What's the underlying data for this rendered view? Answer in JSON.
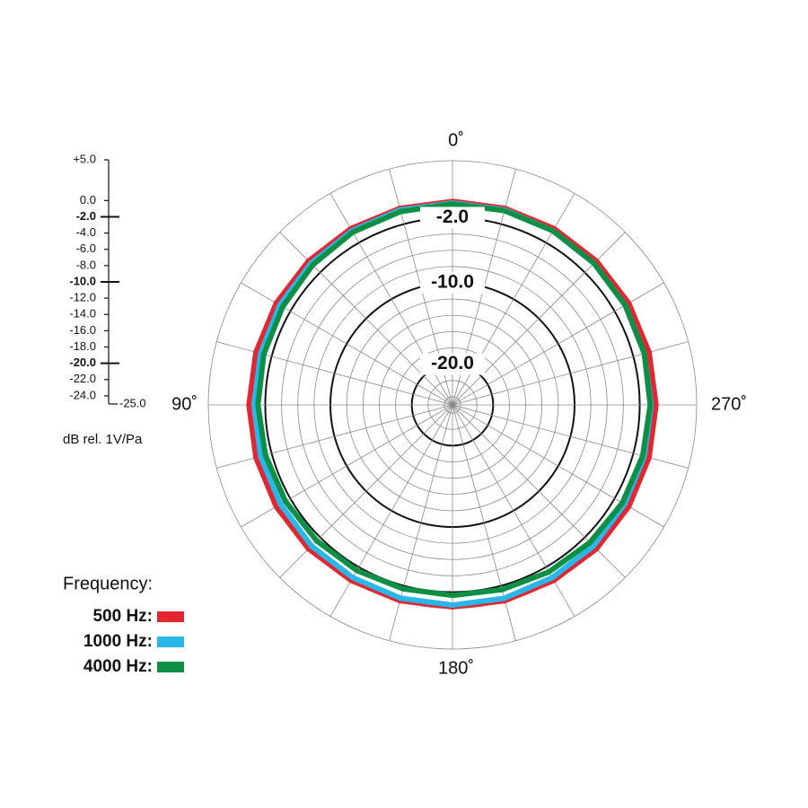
{
  "chart_data": {
    "type": "polar",
    "theta": [
      0,
      15,
      30,
      45,
      60,
      75,
      90,
      105,
      120,
      135,
      150,
      165,
      180,
      195,
      210,
      225,
      240,
      255,
      270,
      285,
      300,
      315,
      330,
      345
    ],
    "series": [
      {
        "name": "500 Hz:",
        "color": "#e3262f",
        "values": [
          0,
          0,
          0,
          0,
          0,
          0,
          0,
          0,
          0,
          0,
          -0.1,
          -0.1,
          -0.2,
          -0.1,
          -0.1,
          0,
          0,
          0,
          0,
          0,
          0,
          0,
          0,
          0
        ]
      },
      {
        "name": "1000 Hz:",
        "color": "#29b6e8",
        "values": [
          -0.2,
          -0.2,
          -0.3,
          -0.4,
          -0.5,
          -0.6,
          -0.6,
          -0.6,
          -0.6,
          -0.5,
          -0.5,
          -0.4,
          -0.4,
          -0.4,
          -0.5,
          -0.5,
          -0.6,
          -0.6,
          -0.6,
          -0.6,
          -0.5,
          -0.4,
          -0.3,
          -0.2
        ]
      },
      {
        "name": "4000 Hz:",
        "color": "#0d8f45",
        "values": [
          -0.3,
          -0.4,
          -0.5,
          -0.7,
          -0.9,
          -1.0,
          -1.1,
          -1.2,
          -1.3,
          -1.4,
          -1.5,
          -1.6,
          -1.6,
          -1.5,
          -1.3,
          -1.1,
          -0.9,
          -0.8,
          -0.7,
          -0.6,
          -0.5,
          -0.4,
          -0.3,
          -0.3
        ]
      }
    ],
    "rlim": [
      -25,
      5
    ],
    "rticks": [
      {
        "value": 5,
        "label": "+5.0"
      },
      {
        "value": 0,
        "label": "0.0"
      },
      {
        "value": -2,
        "label": "-2.0"
      },
      {
        "value": -4,
        "label": "-4.0"
      },
      {
        "value": -6,
        "label": "-6.0"
      },
      {
        "value": -8,
        "label": "-8.0"
      },
      {
        "value": -10,
        "label": "-10.0"
      },
      {
        "value": -12,
        "label": "-12.0"
      },
      {
        "value": -14,
        "label": "-14.0"
      },
      {
        "value": -16,
        "label": "-16.0"
      },
      {
        "value": -18,
        "label": "-18.0"
      },
      {
        "value": -20,
        "label": "-20.0"
      },
      {
        "value": -22,
        "label": "-22.0"
      },
      {
        "value": -24,
        "label": "-24.0"
      },
      {
        "value": -25,
        "label": "-25.0"
      }
    ],
    "ring_labels": [
      {
        "value": -2,
        "label": "-2.0"
      },
      {
        "value": -10,
        "label": "-10.0"
      },
      {
        "value": -20,
        "label": "-20.0"
      }
    ],
    "angle_ticks": [
      {
        "value": 0,
        "label": "0˚"
      },
      {
        "value": 90,
        "label": "90˚"
      },
      {
        "value": 180,
        "label": "180˚"
      },
      {
        "value": 270,
        "label": "270˚"
      }
    ],
    "theta_grid_step": 15,
    "r_axis_label": "dB rel. 1V/Pa",
    "legend_title": "Frequency:"
  }
}
